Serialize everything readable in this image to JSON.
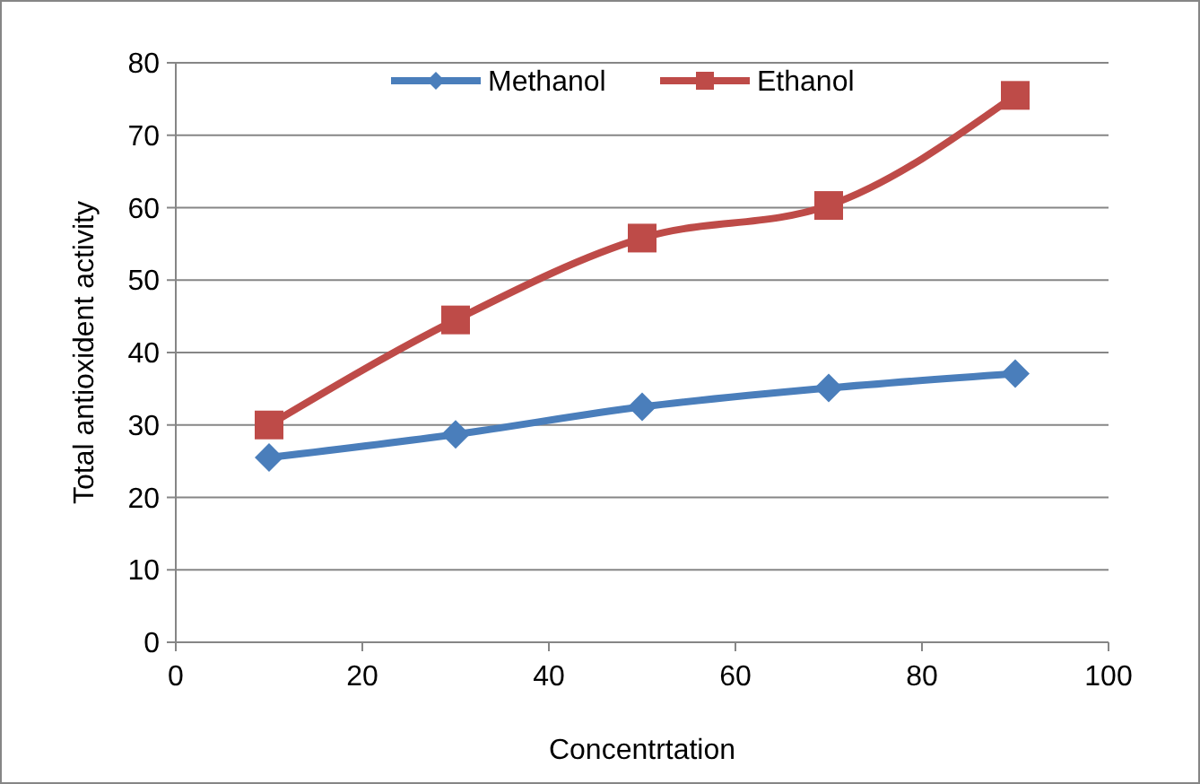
{
  "chart_data": {
    "type": "line",
    "xlabel": "Concentrtation",
    "ylabel": "Total antioxident activity",
    "x": [
      10,
      30,
      50,
      70,
      90
    ],
    "xlim": [
      0,
      100
    ],
    "xticks": [
      0,
      20,
      40,
      60,
      80,
      100
    ],
    "ylim": [
      0,
      80
    ],
    "yticks": [
      0,
      10,
      20,
      30,
      40,
      50,
      60,
      70,
      80
    ],
    "grid": "y",
    "legend": "top",
    "line_style": "solid",
    "series": [
      {
        "name": "Methanol",
        "color": "#4a7ebb",
        "marker": "diamond",
        "values": [
          25.5,
          28.7,
          32.5,
          35.1,
          37.1
        ]
      },
      {
        "name": "Ethanol",
        "color": "#be4b48",
        "marker": "square",
        "values": [
          30,
          44.5,
          55.8,
          60.3,
          75.5
        ]
      }
    ]
  }
}
